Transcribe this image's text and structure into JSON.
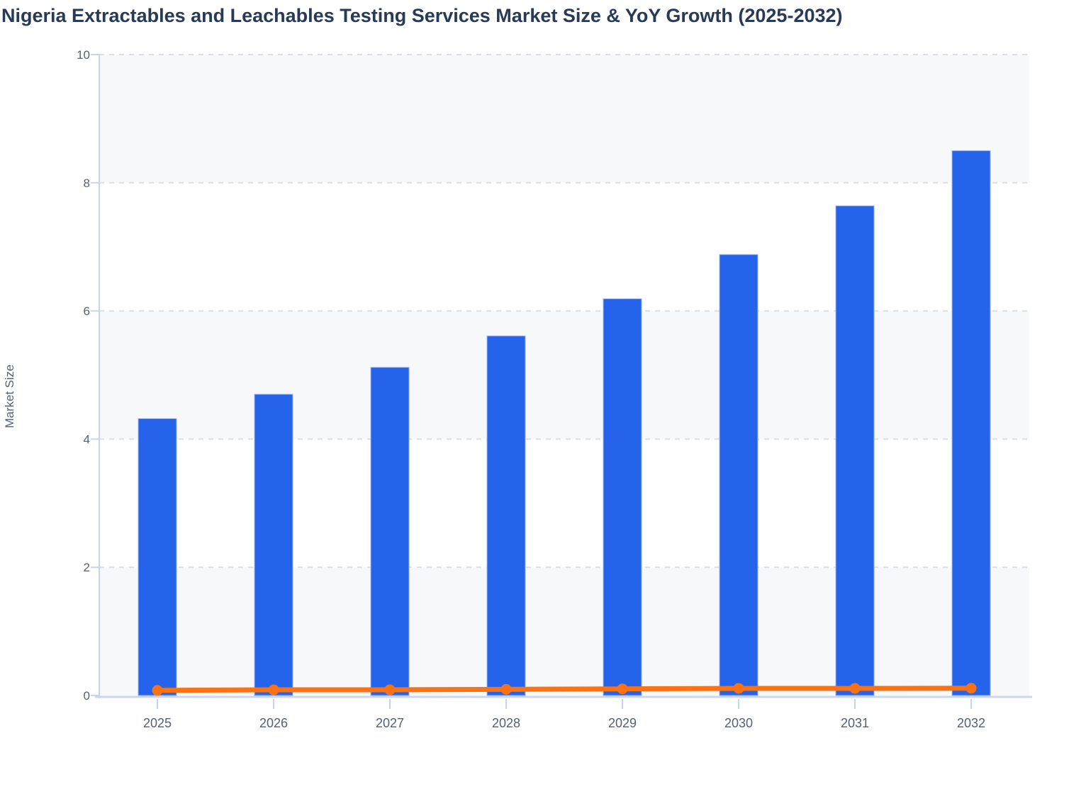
{
  "title": "Nigeria Extractables and Leachables Testing Services Market Size & YoY Growth (2025-2032)",
  "chart_data": {
    "type": "bar",
    "title": "Nigeria Extractables and Leachables Testing Services Market Size & YoY Growth (2025-2032)",
    "categories": [
      "2025",
      "2026",
      "2027",
      "2028",
      "2029",
      "2030",
      "2031",
      "2032"
    ],
    "series": [
      {
        "name": "Market Size",
        "type": "bar",
        "color": "#2563eb",
        "bar_stroke": "#9fb3f2",
        "values": [
          4.32,
          4.7,
          5.12,
          5.61,
          6.19,
          6.88,
          7.64,
          8.5
        ]
      },
      {
        "name": "YoY Growth",
        "type": "line",
        "color": "#f97316",
        "values": [
          0.08,
          0.088,
          0.089,
          0.096,
          0.103,
          0.111,
          0.11,
          0.113
        ],
        "note": "YoY growth fraction plotted near zero on the primary axis"
      }
    ],
    "xlabel": "",
    "ylabel": "Market Size",
    "ylim": [
      0,
      10
    ],
    "yticks": [
      0,
      2,
      4,
      6,
      8,
      10
    ],
    "grid": true,
    "gridline_style": "dashed",
    "legend_position": "none",
    "band_fill": "#f7f8fa",
    "grid_color": "#dcdee3",
    "axis_color": "#c9d3ee",
    "x_axis_line_color": "#ccd6ee",
    "tick_label_color": "#566073",
    "title_color": "#273a56"
  }
}
